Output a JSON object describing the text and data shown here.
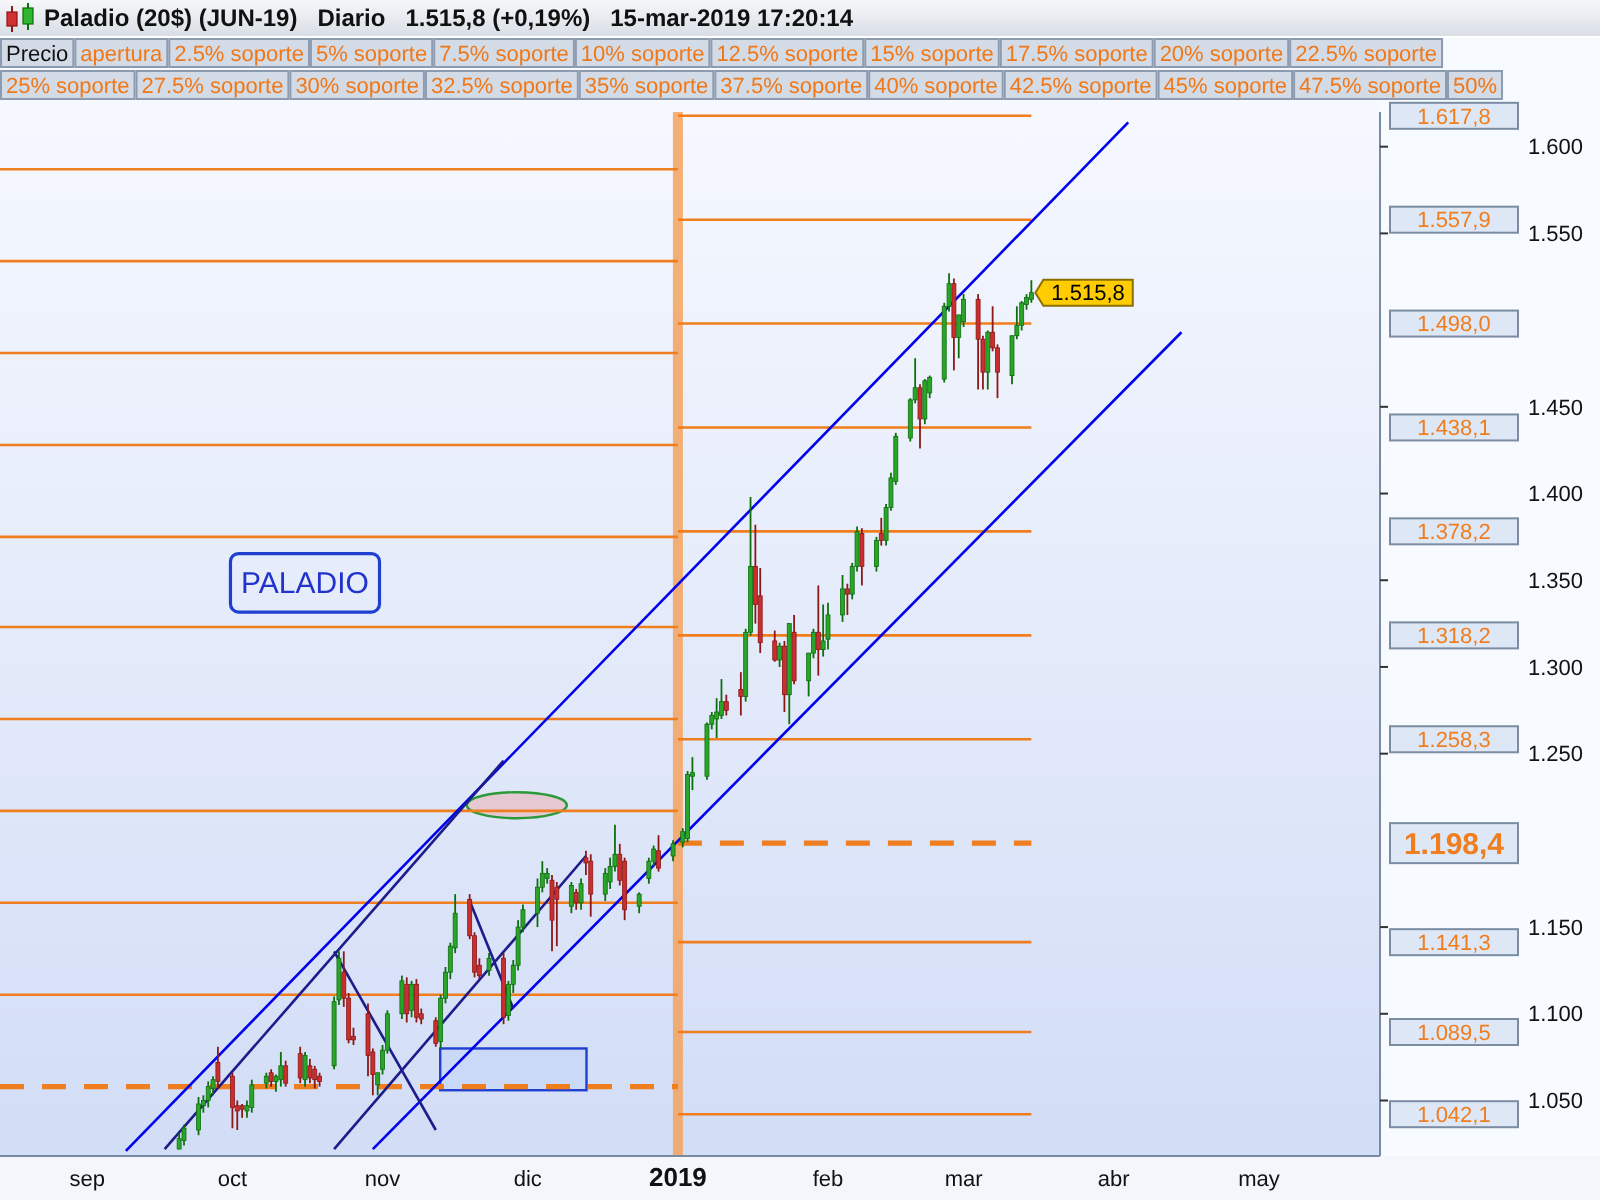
{
  "chart_data": {
    "type": "candlestick",
    "title": "Paladio (20$) (JUN-19)   Diario   1.515,8 (+0,19%)   15-mar-2019 17:20:14",
    "x": [
      "2018-09-20",
      "2018-09-21",
      "2018-09-24",
      "2018-09-25",
      "2018-09-26",
      "2018-09-27",
      "2018-09-28",
      "2018-10-01",
      "2018-10-02",
      "2018-10-03",
      "2018-10-04",
      "2018-10-05",
      "2018-10-08",
      "2018-10-09",
      "2018-10-10",
      "2018-10-11",
      "2018-10-12",
      "2018-10-15",
      "2018-10-16",
      "2018-10-17",
      "2018-10-18",
      "2018-10-19",
      "2018-10-22",
      "2018-10-23",
      "2018-10-24",
      "2018-10-25",
      "2018-10-26",
      "2018-10-29",
      "2018-10-30",
      "2018-10-31",
      "2018-11-01",
      "2018-11-02",
      "2018-11-05",
      "2018-11-06",
      "2018-11-07",
      "2018-11-08",
      "2018-11-09",
      "2018-11-12",
      "2018-11-13",
      "2018-11-14",
      "2018-11-15",
      "2018-11-16",
      "2018-11-19",
      "2018-11-20",
      "2018-11-21",
      "2018-11-23",
      "2018-11-26",
      "2018-11-27",
      "2018-11-28",
      "2018-11-29",
      "2018-11-30",
      "2018-12-03",
      "2018-12-04",
      "2018-12-05",
      "2018-12-06",
      "2018-12-07",
      "2018-12-10",
      "2018-12-11",
      "2018-12-12",
      "2018-12-13",
      "2018-12-14",
      "2018-12-17",
      "2018-12-18",
      "2018-12-19",
      "2018-12-20",
      "2018-12-21",
      "2018-12-24",
      "2018-12-26",
      "2018-12-27",
      "2018-12-28",
      "2018-12-31",
      "2019-01-02",
      "2019-01-03",
      "2019-01-04",
      "2019-01-07",
      "2019-01-08",
      "2019-01-09",
      "2019-01-10",
      "2019-01-11",
      "2019-01-14",
      "2019-01-15",
      "2019-01-16",
      "2019-01-17",
      "2019-01-18",
      "2019-01-21",
      "2019-01-22",
      "2019-01-23",
      "2019-01-24",
      "2019-01-25",
      "2019-01-28",
      "2019-01-29",
      "2019-01-30",
      "2019-01-31",
      "2019-02-01",
      "2019-02-04",
      "2019-02-05",
      "2019-02-06",
      "2019-02-07",
      "2019-02-08",
      "2019-02-11",
      "2019-02-12",
      "2019-02-13",
      "2019-02-14",
      "2019-02-15",
      "2019-02-18",
      "2019-02-19",
      "2019-02-20",
      "2019-02-21",
      "2019-02-22",
      "2019-02-25",
      "2019-02-26",
      "2019-02-27",
      "2019-02-28",
      "2019-03-01",
      "2019-03-04",
      "2019-03-05",
      "2019-03-06",
      "2019-03-07",
      "2019-03-08",
      "2019-03-11",
      "2019-03-12",
      "2019-03-13",
      "2019-03-14",
      "2019-03-15"
    ],
    "ohlc": [
      [
        1022,
        1031,
        1022,
        1028
      ],
      [
        1027,
        1036,
        1024,
        1034
      ],
      [
        1033,
        1052,
        1030,
        1048
      ],
      [
        1047,
        1053,
        1043,
        1050
      ],
      [
        1050,
        1061,
        1046,
        1058
      ],
      [
        1057,
        1064,
        1053,
        1062
      ],
      [
        1072,
        1081,
        1057,
        1061
      ],
      [
        1064,
        1066,
        1034,
        1046
      ],
      [
        1047,
        1050,
        1033,
        1044
      ],
      [
        1047,
        1048,
        1040,
        1045
      ],
      [
        1044,
        1050,
        1040,
        1047
      ],
      [
        1046,
        1062,
        1043,
        1059
      ],
      [
        1060,
        1066,
        1057,
        1064
      ],
      [
        1066,
        1068,
        1058,
        1061
      ],
      [
        1061,
        1065,
        1055,
        1064
      ],
      [
        1062,
        1078,
        1058,
        1070
      ],
      [
        1070,
        1073,
        1058,
        1060
      ],
      [
        1077,
        1081,
        1060,
        1063
      ],
      [
        1062,
        1078,
        1058,
        1076
      ],
      [
        1070,
        1074,
        1060,
        1063
      ],
      [
        1068,
        1070,
        1057,
        1062
      ],
      [
        1064,
        1066,
        1058,
        1061
      ],
      [
        1070,
        1110,
        1068,
        1107
      ],
      [
        1108,
        1136,
        1105,
        1132
      ],
      [
        1124,
        1136,
        1104,
        1109
      ],
      [
        1109,
        1112,
        1083,
        1085
      ],
      [
        1087,
        1092,
        1082,
        1085
      ],
      [
        1100,
        1106,
        1064,
        1076
      ],
      [
        1078,
        1080,
        1053,
        1065
      ],
      [
        1059,
        1066,
        1053,
        1066
      ],
      [
        1068,
        1082,
        1065,
        1079
      ],
      [
        1079,
        1102,
        1077,
        1100
      ],
      [
        1100,
        1122,
        1097,
        1119
      ],
      [
        1117,
        1121,
        1095,
        1100
      ],
      [
        1102,
        1119,
        1098,
        1117
      ],
      [
        1117,
        1120,
        1095,
        1098
      ],
      [
        1100,
        1103,
        1094,
        1097
      ],
      [
        1096,
        1098,
        1081,
        1083
      ],
      [
        1084,
        1111,
        1080,
        1109
      ],
      [
        1109,
        1127,
        1106,
        1124
      ],
      [
        1124,
        1141,
        1120,
        1139
      ],
      [
        1138,
        1169,
        1135,
        1158
      ],
      [
        1166,
        1169,
        1143,
        1145
      ],
      [
        1145,
        1147,
        1121,
        1124
      ],
      [
        1128,
        1132,
        1120,
        1122
      ],
      [
        1125,
        1135,
        1122,
        1132
      ],
      [
        1132,
        1135,
        1094,
        1098
      ],
      [
        1099,
        1119,
        1096,
        1117
      ],
      [
        1117,
        1131,
        1112,
        1128
      ],
      [
        1128,
        1154,
        1125,
        1150
      ],
      [
        1150,
        1163,
        1147,
        1160
      ],
      [
        1158,
        1178,
        1150,
        1173
      ],
      [
        1173,
        1188,
        1170,
        1181
      ],
      [
        1178,
        1184,
        1175,
        1181
      ],
      [
        1177,
        1180,
        1136,
        1154
      ],
      [
        1173,
        1176,
        1139,
        1166
      ],
      [
        1162,
        1176,
        1158,
        1174
      ],
      [
        1170,
        1172,
        1160,
        1164
      ],
      [
        1164,
        1178,
        1160,
        1175
      ],
      [
        1190,
        1194,
        1180,
        1187
      ],
      [
        1188,
        1192,
        1156,
        1169
      ],
      [
        1169,
        1184,
        1165,
        1181
      ],
      [
        1176,
        1190,
        1172,
        1185
      ],
      [
        1185,
        1209,
        1182,
        1192
      ],
      [
        1192,
        1198,
        1174,
        1177
      ],
      [
        1188,
        1190,
        1154,
        1160
      ],
      [
        1162,
        1170,
        1158,
        1169
      ],
      [
        1178,
        1190,
        1175,
        1188
      ],
      [
        1188,
        1197,
        1185,
        1195
      ],
      [
        1194,
        1203,
        1182,
        1184
      ],
      [
        1191,
        1200,
        1188,
        1198
      ],
      [
        1199,
        1207,
        1196,
        1205
      ],
      [
        1201,
        1240,
        1199,
        1238
      ],
      [
        1237,
        1248,
        1229,
        1239
      ],
      [
        1237,
        1268,
        1235,
        1267
      ],
      [
        1267,
        1274,
        1264,
        1272
      ],
      [
        1270,
        1282,
        1259,
        1274
      ],
      [
        1272,
        1293,
        1270,
        1280
      ],
      [
        1280,
        1284,
        1272,
        1275
      ],
      [
        1287,
        1297,
        1272,
        1283
      ],
      [
        1283,
        1322,
        1280,
        1320
      ],
      [
        1320,
        1398,
        1318,
        1358
      ],
      [
        1358,
        1382,
        1325,
        1336
      ],
      [
        1341,
        1357,
        1308,
        1314
      ],
      [
        1315,
        1321,
        1303,
        1304
      ],
      [
        1304,
        1314,
        1300,
        1312
      ],
      [
        1312,
        1315,
        1274,
        1284
      ],
      [
        1284,
        1325,
        1267,
        1325
      ],
      [
        1320,
        1330,
        1290,
        1292
      ],
      [
        1292,
        1308,
        1283,
        1308
      ],
      [
        1308,
        1322,
        1305,
        1320
      ],
      [
        1320,
        1347,
        1295,
        1310
      ],
      [
        1310,
        1336,
        1306,
        1315
      ],
      [
        1316,
        1337,
        1310,
        1330
      ],
      [
        1330,
        1353,
        1326,
        1345
      ],
      [
        1345,
        1348,
        1330,
        1342
      ],
      [
        1342,
        1360,
        1339,
        1358
      ],
      [
        1358,
        1381,
        1355,
        1378
      ],
      [
        1377,
        1380,
        1347,
        1358
      ],
      [
        1358,
        1375,
        1355,
        1373
      ],
      [
        1377,
        1386,
        1370,
        1373
      ],
      [
        1373,
        1394,
        1370,
        1392
      ],
      [
        1392,
        1412,
        1390,
        1409
      ],
      [
        1407,
        1435,
        1405,
        1433
      ],
      [
        1432,
        1455,
        1430,
        1454
      ],
      [
        1454,
        1478,
        1452,
        1461
      ],
      [
        1461,
        1463,
        1426,
        1443
      ],
      [
        1443,
        1466,
        1440,
        1465
      ],
      [
        1458,
        1468,
        1455,
        1467
      ],
      [
        1466,
        1510,
        1464,
        1508
      ],
      [
        1508,
        1527,
        1505,
        1521
      ],
      [
        1521,
        1524,
        1471,
        1490
      ],
      [
        1490,
        1503,
        1478,
        1503
      ],
      [
        1499,
        1515,
        1496,
        1512
      ],
      [
        1512,
        1515,
        1460,
        1489
      ],
      [
        1489,
        1491,
        1460,
        1470
      ],
      [
        1470,
        1494,
        1460,
        1493
      ],
      [
        1493,
        1508,
        1482,
        1484
      ],
      [
        1484,
        1486,
        1455,
        1470
      ],
      [
        1468,
        1491,
        1463,
        1491
      ],
      [
        1491,
        1508,
        1489,
        1497
      ],
      [
        1497,
        1511,
        1494,
        1510
      ],
      [
        1509,
        1515,
        1506,
        1513
      ],
      [
        1512,
        1523,
        1510,
        1515.8
      ]
    ],
    "series": [
      {
        "type": "line",
        "x": [
          "2018-08-14",
          "2019-01-01"
        ],
        "values": [
          1058,
          1058
        ],
        "color": "#f07d1e",
        "line_style": "dashed"
      },
      {
        "type": "line",
        "x": [
          "2018-08-14",
          "2019-01-01"
        ],
        "values": [
          1111,
          1111
        ],
        "color": "#f07d1e"
      },
      {
        "type": "line",
        "x": [
          "2018-08-14",
          "2019-01-01"
        ],
        "values": [
          1164,
          1164
        ],
        "color": "#f07d1e"
      },
      {
        "type": "line",
        "x": [
          "2018-08-14",
          "2019-01-01"
        ],
        "values": [
          1217,
          1217
        ],
        "color": "#f07d1e"
      },
      {
        "type": "line",
        "x": [
          "2018-08-14",
          "2019-01-01"
        ],
        "values": [
          1270,
          1270
        ],
        "color": "#f07d1e"
      },
      {
        "type": "line",
        "x": [
          "2018-08-14",
          "2019-01-01"
        ],
        "values": [
          1323,
          1323
        ],
        "color": "#f07d1e"
      },
      {
        "type": "line",
        "x": [
          "2018-08-14",
          "2019-01-01"
        ],
        "values": [
          1375,
          1375
        ],
        "color": "#f07d1e"
      },
      {
        "type": "line",
        "x": [
          "2018-08-14",
          "2019-01-01"
        ],
        "values": [
          1428,
          1428
        ],
        "color": "#f07d1e"
      },
      {
        "type": "line",
        "x": [
          "2018-08-14",
          "2019-01-01"
        ],
        "values": [
          1481,
          1481
        ],
        "color": "#f07d1e"
      },
      {
        "type": "line",
        "x": [
          "2018-08-14",
          "2019-01-01"
        ],
        "values": [
          1534,
          1534
        ],
        "color": "#f07d1e"
      },
      {
        "type": "line",
        "x": [
          "2018-08-14",
          "2019-01-01"
        ],
        "values": [
          1587,
          1587
        ],
        "color": "#f07d1e"
      },
      {
        "type": "line",
        "x": [
          "2018-09-09",
          "2019-04-04"
        ],
        "values": [
          1021,
          1614
        ],
        "color": "#0000ee"
      },
      {
        "type": "line",
        "x": [
          "2018-09-17",
          "2018-11-26"
        ],
        "values": [
          1022,
          1246
        ],
        "color": "#1c1c8c"
      },
      {
        "type": "line",
        "x": [
          "2018-10-22",
          "2018-12-13"
        ],
        "values": [
          1022,
          1191
        ],
        "color": "#1c1c8c"
      },
      {
        "type": "line",
        "x": [
          "2018-10-30",
          "2019-04-15"
        ],
        "values": [
          1022,
          1493
        ],
        "color": "#0000ee"
      },
      {
        "type": "line",
        "x": [
          "2018-10-22",
          "2018-11-12"
        ],
        "values": [
          1136,
          1033
        ],
        "color": "#1c1c8c"
      },
      {
        "type": "line",
        "x": [
          "2018-11-19",
          "2018-11-28"
        ],
        "values": [
          1165,
          1103
        ],
        "color": "#1c1c8c"
      }
    ],
    "xlim": [
      "2018-08-14",
      "2019-05-26"
    ],
    "xticks": [
      {
        "value": "2018-09-01",
        "label": "sep"
      },
      {
        "value": "2018-10-01",
        "label": "oct"
      },
      {
        "value": "2018-11-01",
        "label": "nov"
      },
      {
        "value": "2018-12-01",
        "label": "dic"
      },
      {
        "value": "2019-01-01",
        "label": "2019"
      },
      {
        "value": "2019-02-01",
        "label": "feb"
      },
      {
        "value": "2019-03-01",
        "label": "mar"
      },
      {
        "value": "2019-04-01",
        "label": "abr"
      },
      {
        "value": "2019-05-01",
        "label": "may"
      }
    ],
    "ylim": [
      1018,
      1620
    ],
    "yticks": [
      {
        "value": 1050,
        "label": "1.050"
      },
      {
        "value": 1100,
        "label": "1.100"
      },
      {
        "value": 1150,
        "label": "1.150"
      },
      {
        "value": 1250,
        "label": "1.250"
      },
      {
        "value": 1300,
        "label": "1.300"
      },
      {
        "value": 1350,
        "label": "1.350"
      },
      {
        "value": 1400,
        "label": "1.400"
      },
      {
        "value": 1450,
        "label": "1.450"
      },
      {
        "value": 1550,
        "label": "1.550"
      },
      {
        "value": 1600,
        "label": "1.600"
      }
    ],
    "ref_lines": [
      {
        "axis": "x",
        "value": "2019-01-01",
        "color": "#f5a25d"
      },
      {
        "axis": "y",
        "value": 1617.8,
        "label": "1.617,8",
        "color": "#f07d1e"
      },
      {
        "axis": "y",
        "value": 1557.9,
        "label": "1.557,9",
        "color": "#f07d1e"
      },
      {
        "axis": "y",
        "value": 1498,
        "label": "1.498,0",
        "color": "#f07d1e"
      },
      {
        "axis": "y",
        "value": 1438.1,
        "label": "1.438,1",
        "color": "#f07d1e"
      },
      {
        "axis": "y",
        "value": 1378.2,
        "label": "1.378,2",
        "color": "#f07d1e"
      },
      {
        "axis": "y",
        "value": 1318.2,
        "label": "1.318,2",
        "color": "#f07d1e"
      },
      {
        "axis": "y",
        "value": 1258.3,
        "label": "1.258,3",
        "color": "#f07d1e"
      },
      {
        "axis": "y",
        "value": 1198.4,
        "label": "1.198,4",
        "color": "#f07d1e",
        "line_style": "dashed"
      },
      {
        "axis": "y",
        "value": 1141.3,
        "label": "1.141,3",
        "color": "#f07d1e"
      },
      {
        "axis": "y",
        "value": 1089.5,
        "label": "1.089,5",
        "color": "#f07d1e"
      },
      {
        "axis": "y",
        "value": 1042.1,
        "label": "1.042,1",
        "color": "#f07d1e"
      }
    ],
    "annotations": [
      "Precio",
      "apertura",
      "2.5% soporte",
      "5% soporte",
      "7.5% soporte",
      "10% soporte",
      "12.5% soporte",
      "15% soporte",
      "17.5% soporte",
      "20% soporte",
      "22.5% soporte",
      "25% soporte",
      "27.5% soporte",
      "30% soporte",
      "32.5% soporte",
      "35% soporte",
      "37.5% soporte",
      "40% soporte",
      "42.5% soporte",
      "45% soporte",
      "47.5% soporte",
      "50%",
      "PALADIO",
      {
        "text": "1.515,8",
        "x": "2019-03-15",
        "y": 1515.8
      }
    ]
  }
}
